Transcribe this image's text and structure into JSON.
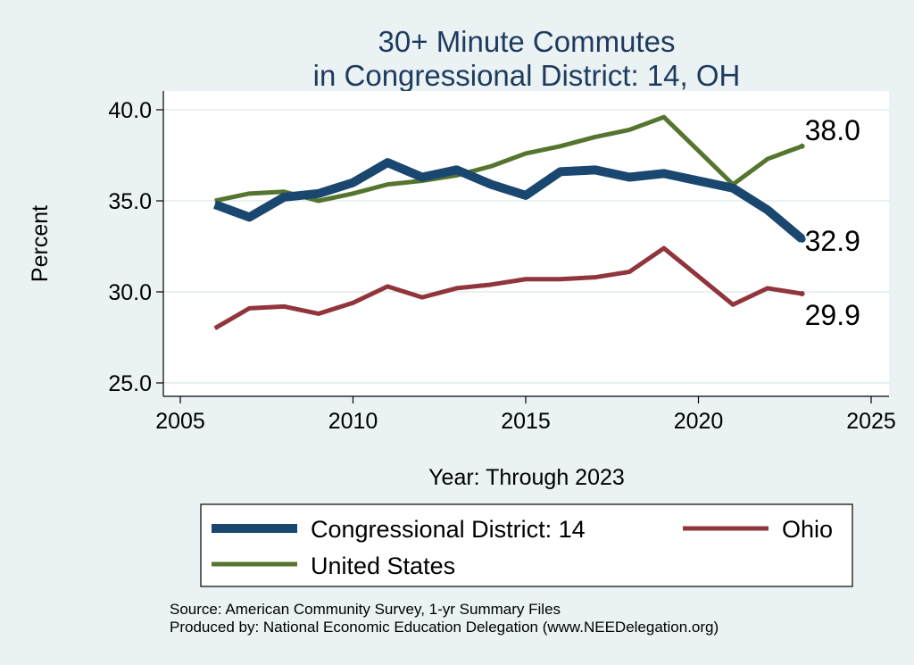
{
  "chart_data": {
    "type": "line",
    "title_lines": [
      "30+ Minute Commutes",
      "in Congressional District:  14, OH"
    ],
    "xlabel": "Year: Through 2023",
    "ylabel": "Percent",
    "xlim": [
      2005,
      2025
    ],
    "ylim": [
      25,
      40
    ],
    "x_ticks": [
      2005,
      2010,
      2015,
      2020,
      2025
    ],
    "y_ticks": [
      25,
      30,
      35,
      40
    ],
    "y_tick_labels": [
      "25.0",
      "30.0",
      "35.0",
      "40.0"
    ],
    "grid": true,
    "legend_position": "bottom",
    "series": [
      {
        "name": "Congressional District:  14",
        "color": "#1a476f",
        "x": [
          2006,
          2007,
          2008,
          2009,
          2010,
          2011,
          2012,
          2013,
          2014,
          2015,
          2016,
          2017,
          2018,
          2019,
          2021,
          2022,
          2023
        ],
        "values": [
          34.8,
          34.1,
          35.2,
          35.4,
          36.0,
          37.1,
          36.3,
          36.7,
          35.9,
          35.3,
          36.6,
          36.7,
          36.3,
          36.5,
          35.7,
          34.5,
          32.9
        ],
        "end_label": "32.9"
      },
      {
        "name": "Ohio",
        "color": "#90353b",
        "x": [
          2006,
          2007,
          2008,
          2009,
          2010,
          2011,
          2012,
          2013,
          2014,
          2015,
          2016,
          2017,
          2018,
          2019,
          2021,
          2022,
          2023
        ],
        "values": [
          28.0,
          29.1,
          29.2,
          28.8,
          29.4,
          30.3,
          29.7,
          30.2,
          30.4,
          30.7,
          30.7,
          30.8,
          31.1,
          32.4,
          29.3,
          30.2,
          29.9
        ],
        "end_label": "29.9"
      },
      {
        "name": "United States",
        "color": "#55752f",
        "x": [
          2006,
          2007,
          2008,
          2009,
          2010,
          2011,
          2012,
          2013,
          2014,
          2015,
          2016,
          2017,
          2018,
          2019,
          2021,
          2022,
          2023
        ],
        "values": [
          35.0,
          35.4,
          35.5,
          35.0,
          35.4,
          35.9,
          36.1,
          36.4,
          36.9,
          37.6,
          38.0,
          38.5,
          38.9,
          39.6,
          35.9,
          37.3,
          38.0
        ],
        "end_label": "38.0"
      }
    ]
  },
  "legend": {
    "items": [
      "Congressional District:  14",
      "Ohio",
      "United States"
    ]
  },
  "source": {
    "line1": "Source: American Community Survey, 1-yr Summary Files",
    "line2": "Produced by: National Economic Education Delegation (www.NEEDelegation.org)"
  }
}
